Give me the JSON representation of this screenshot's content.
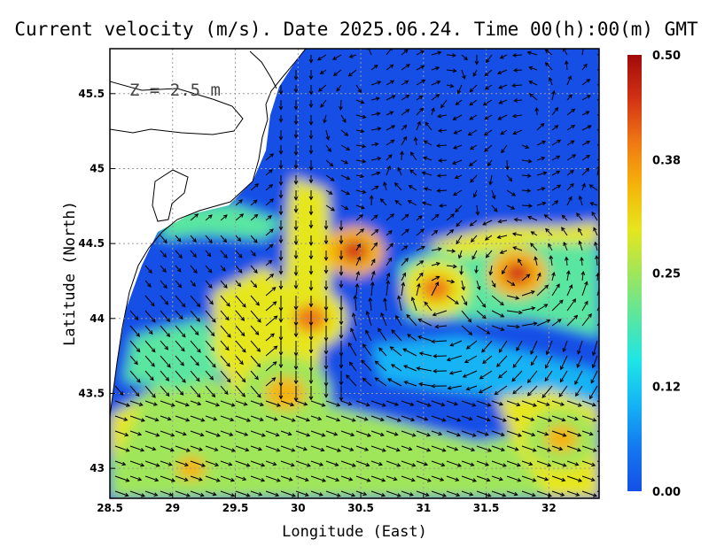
{
  "title": "Current velocity (m/s). Date 2025.06.24. Time 00(h):00(m) GMT",
  "depth_label": "Z = 2.5 m",
  "colors": {
    "land": "#ffffff",
    "coast": "#000000",
    "grid": "#9a9a9a",
    "arrows": "#000000",
    "colormap": [
      "#1450e6",
      "#1478f0",
      "#14b4f5",
      "#1ee6e6",
      "#5ae6a0",
      "#a0e65a",
      "#e6e61e",
      "#f5b40a",
      "#f07814",
      "#d23214",
      "#a00a0a"
    ]
  },
  "chart_data": {
    "type": "heatmap",
    "title": "Current velocity (m/s). Date 2025.06.24. Time 00(h):00(m) GMT",
    "xlabel": "Longitude (East)",
    "ylabel": "Latitude (North)",
    "xlim": [
      28.5,
      32.4
    ],
    "ylim": [
      42.8,
      45.8
    ],
    "xticks": [
      "28.5",
      "29",
      "29.5",
      "30",
      "30.5",
      "31",
      "31.5",
      "32"
    ],
    "xtick_values": [
      28.5,
      29,
      29.5,
      30,
      30.5,
      31,
      31.5,
      32
    ],
    "yticks": [
      "43",
      "43.5",
      "44",
      "44.5",
      "45",
      "45.5"
    ],
    "ytick_values": [
      43,
      43.5,
      44,
      44.5,
      45,
      45.5
    ],
    "grid": true,
    "colorbar": {
      "min": 0.0,
      "max": 0.5,
      "ticks": [
        "0.00",
        "0.12",
        "0.25",
        "0.38",
        "0.50"
      ],
      "tick_values": [
        0.0,
        0.12,
        0.25,
        0.38,
        0.5
      ]
    },
    "hotspots": [
      {
        "lon": 30.45,
        "lat": 44.45,
        "speed": 0.46
      },
      {
        "lon": 30.1,
        "lat": 44.0,
        "speed": 0.4
      },
      {
        "lon": 29.9,
        "lat": 43.5,
        "speed": 0.36
      },
      {
        "lon": 31.1,
        "lat": 44.2,
        "speed": 0.38
      },
      {
        "lon": 31.75,
        "lat": 44.3,
        "speed": 0.46
      },
      {
        "lon": 29.15,
        "lat": 43.0,
        "speed": 0.36
      },
      {
        "lon": 32.1,
        "lat": 43.2,
        "speed": 0.34
      }
    ]
  }
}
